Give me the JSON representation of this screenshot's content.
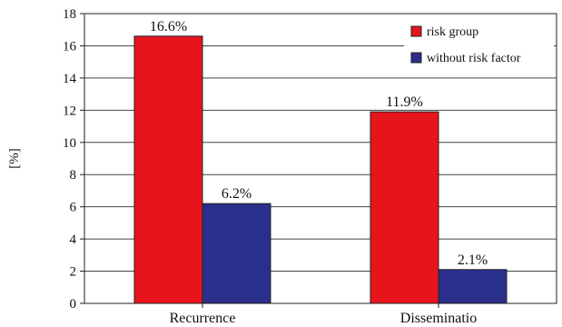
{
  "chart_data": {
    "type": "bar",
    "categories": [
      "Recurrence",
      "Disseminatio"
    ],
    "series": [
      {
        "name": "risk group",
        "values": [
          16.6,
          11.9
        ],
        "labels": [
          "16.6%",
          "11.9%"
        ],
        "color": "#e8141c"
      },
      {
        "name": "without risk factor",
        "values": [
          6.2,
          2.1
        ],
        "labels": [
          "6.2%",
          "2.1%"
        ],
        "color": "#2b2f8c"
      }
    ],
    "ylabel": "[%]",
    "ylim": [
      0,
      18
    ],
    "yticks": [
      0,
      2,
      4,
      6,
      8,
      10,
      12,
      14,
      16,
      18
    ],
    "grid": true,
    "legend_position": "top-right"
  }
}
